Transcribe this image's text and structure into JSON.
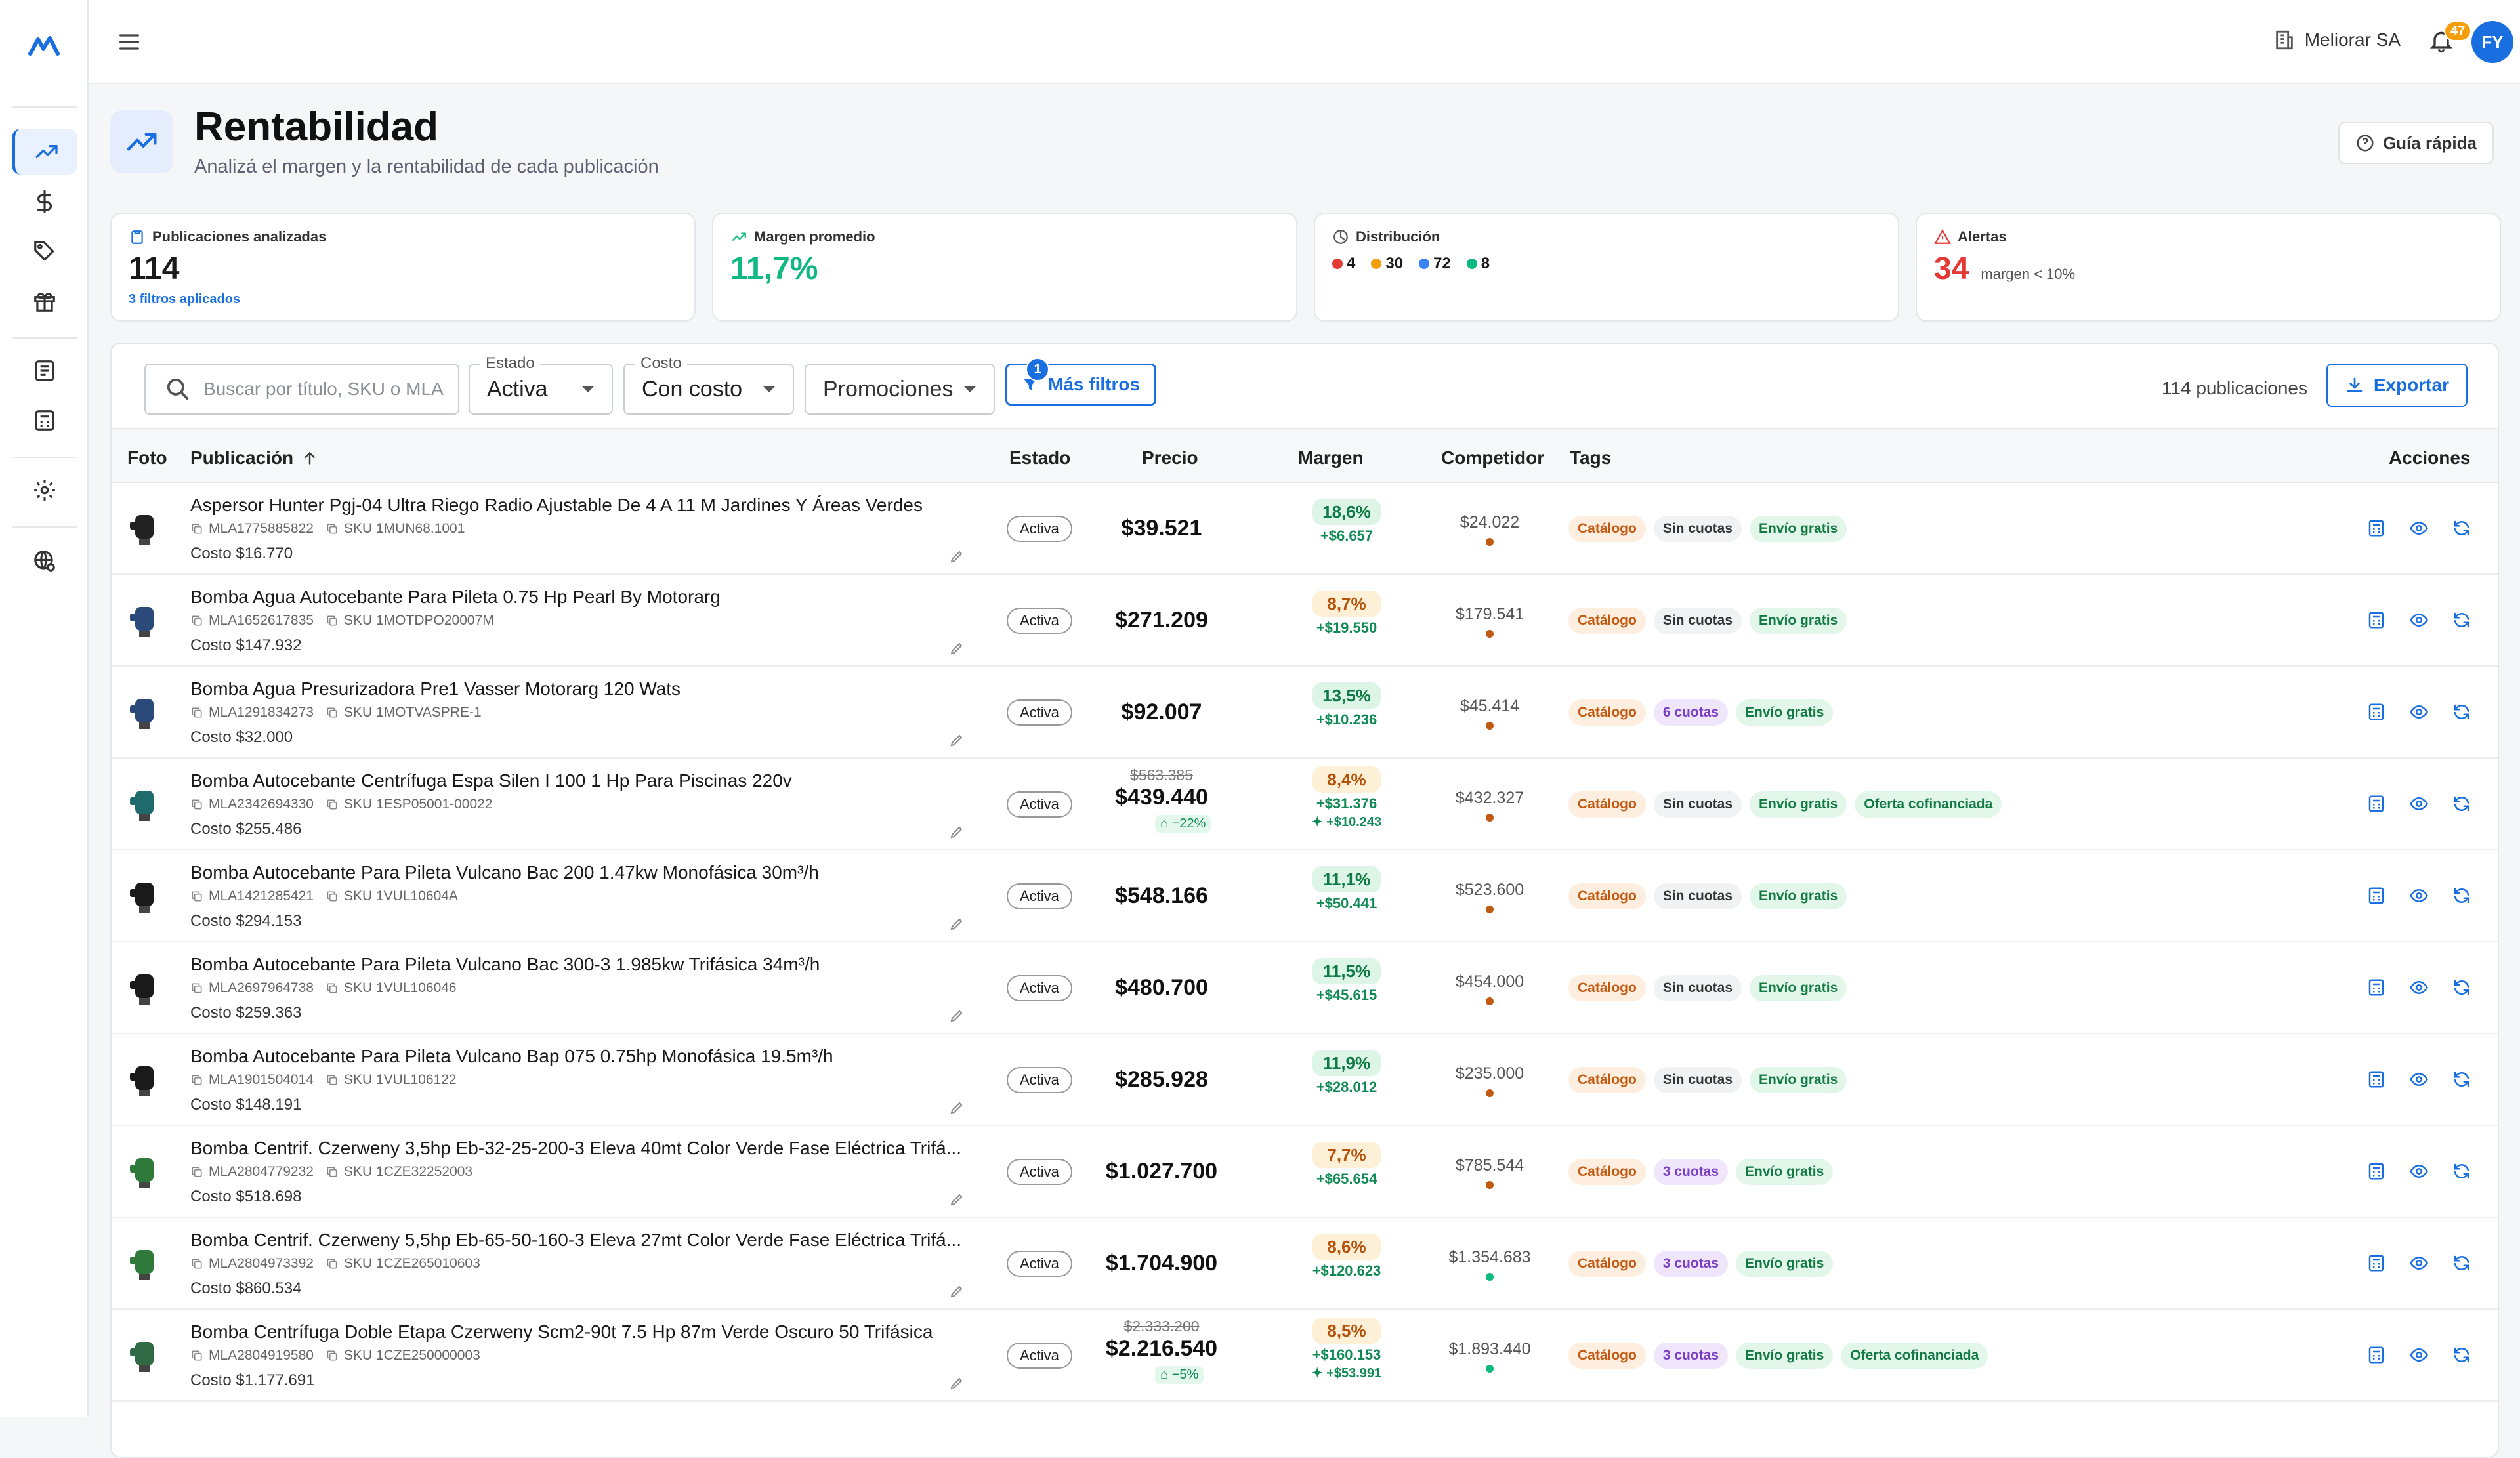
{
  "topbar": {
    "org_name": "Meliorar SA",
    "notifications": "47",
    "avatar_initials": "FY"
  },
  "page": {
    "title": "Rentabilidad",
    "subtitle": "Analizá el margen y la rentabilidad de cada publicación",
    "guide_label": "Guía rápida"
  },
  "cards": {
    "publicaciones": {
      "label": "Publicaciones analizadas",
      "value": "114",
      "sub": "3 filtros aplicados"
    },
    "margen": {
      "label": "Margen promedio",
      "value": "11,7%"
    },
    "distribucion": {
      "label": "Distribución",
      "items": [
        {
          "value": "4",
          "color": "#e53935"
        },
        {
          "value": "30",
          "color": "#f59e0b"
        },
        {
          "value": "72",
          "color": "#3b82f6"
        },
        {
          "value": "8",
          "color": "#10b981"
        }
      ]
    },
    "alertas": {
      "label": "Alertas",
      "value": "34",
      "sub": "margen < 10%"
    }
  },
  "filters": {
    "search_placeholder": "Buscar por título, SKU o MLA",
    "estado": {
      "label": "Estado",
      "value": "Activa"
    },
    "costo": {
      "label": "Costo",
      "value": "Con costo"
    },
    "promociones": {
      "value": "Promociones"
    },
    "more_label": "Más filtros",
    "more_count": "1",
    "count_text": "114 publicaciones",
    "export_label": "Exportar"
  },
  "columns": {
    "foto": "Foto",
    "publicacion": "Publicación",
    "estado": "Estado",
    "precio": "Precio",
    "margen": "Margen",
    "competidor": "Competidor",
    "tags": "Tags",
    "acciones": "Acciones"
  },
  "rows": [
    {
      "title": "Aspersor Hunter Pgj-04 Ultra Riego Radio Ajustable De 4 A 11 M Jardines Y Áreas Verdes",
      "mla": "MLA1775885822",
      "sku": "SKU 1MUN68.1001",
      "cost": "Costo $16.770",
      "status": "Activa",
      "price": "$39.521",
      "old_price": "",
      "discount": "",
      "margin": "18,6%",
      "margin_level": "green",
      "margin_value": "+$6.657",
      "margin_promo": "",
      "competitor": "$24.022",
      "comp_color": "#c05a12",
      "tags": [
        {
          "label": "Catálogo",
          "kind": "cat"
        },
        {
          "label": "Sin cuotas",
          "kind": "sin"
        },
        {
          "label": "Envío gratis",
          "kind": "env"
        }
      ]
    },
    {
      "title": "Bomba Agua Autocebante Para Pileta 0.75 Hp Pearl By Motorarg",
      "mla": "MLA1652617835",
      "sku": "SKU 1MOTDPO20007M",
      "cost": "Costo $147.932",
      "status": "Activa",
      "price": "$271.209",
      "old_price": "",
      "discount": "",
      "margin": "8,7%",
      "margin_level": "orange",
      "margin_value": "+$19.550",
      "margin_promo": "",
      "competitor": "$179.541",
      "comp_color": "#c05a12",
      "tags": [
        {
          "label": "Catálogo",
          "kind": "cat"
        },
        {
          "label": "Sin cuotas",
          "kind": "sin"
        },
        {
          "label": "Envío gratis",
          "kind": "env"
        }
      ]
    },
    {
      "title": "Bomba Agua Presurizadora Pre1 Vasser Motorarg 120 Wats",
      "mla": "MLA1291834273",
      "sku": "SKU 1MOTVASPRE-1",
      "cost": "Costo $32.000",
      "status": "Activa",
      "price": "$92.007",
      "old_price": "",
      "discount": "",
      "margin": "13,5%",
      "margin_level": "green",
      "margin_value": "+$10.236",
      "margin_promo": "",
      "competitor": "$45.414",
      "comp_color": "#c05a12",
      "tags": [
        {
          "label": "Catálogo",
          "kind": "cat"
        },
        {
          "label": "6 cuotas",
          "kind": "cuo"
        },
        {
          "label": "Envío gratis",
          "kind": "env"
        }
      ]
    },
    {
      "title": "Bomba Autocebante Centrífuga Espa Silen I 100 1 Hp Para Piscinas 220v",
      "mla": "MLA2342694330",
      "sku": "SKU 1ESP05001-00022",
      "cost": "Costo $255.486",
      "status": "Activa",
      "price": "$439.440",
      "old_price": "$563.385",
      "discount": "−22%",
      "margin": "8,4%",
      "margin_level": "orange",
      "margin_value": "+$31.376",
      "margin_promo": "+$10.243",
      "competitor": "$432.327",
      "comp_color": "#c05a12",
      "tags": [
        {
          "label": "Catálogo",
          "kind": "cat"
        },
        {
          "label": "Sin cuotas",
          "kind": "sin"
        },
        {
          "label": "Envío gratis",
          "kind": "env"
        },
        {
          "label": "Oferta cofinanciada",
          "kind": "ofe"
        }
      ]
    },
    {
      "title": "Bomba Autocebante Para Pileta Vulcano Bac 200 1.47kw Monofásica 30m³/h",
      "mla": "MLA1421285421",
      "sku": "SKU 1VUL10604A",
      "cost": "Costo $294.153",
      "status": "Activa",
      "price": "$548.166",
      "old_price": "",
      "discount": "",
      "margin": "11,1%",
      "margin_level": "green",
      "margin_value": "+$50.441",
      "margin_promo": "",
      "competitor": "$523.600",
      "comp_color": "#c05a12",
      "tags": [
        {
          "label": "Catálogo",
          "kind": "cat"
        },
        {
          "label": "Sin cuotas",
          "kind": "sin"
        },
        {
          "label": "Envío gratis",
          "kind": "env"
        }
      ]
    },
    {
      "title": "Bomba Autocebante Para Pileta Vulcano Bac 300-3 1.985kw Trifásica 34m³/h",
      "mla": "MLA2697964738",
      "sku": "SKU 1VUL106046",
      "cost": "Costo $259.363",
      "status": "Activa",
      "price": "$480.700",
      "old_price": "",
      "discount": "",
      "margin": "11,5%",
      "margin_level": "green",
      "margin_value": "+$45.615",
      "margin_promo": "",
      "competitor": "$454.000",
      "comp_color": "#c05a12",
      "tags": [
        {
          "label": "Catálogo",
          "kind": "cat"
        },
        {
          "label": "Sin cuotas",
          "kind": "sin"
        },
        {
          "label": "Envío gratis",
          "kind": "env"
        }
      ]
    },
    {
      "title": "Bomba Autocebante Para Pileta Vulcano Bap 075 0.75hp Monofásica 19.5m³/h",
      "mla": "MLA1901504014",
      "sku": "SKU 1VUL106122",
      "cost": "Costo $148.191",
      "status": "Activa",
      "price": "$285.928",
      "old_price": "",
      "discount": "",
      "margin": "11,9%",
      "margin_level": "green",
      "margin_value": "+$28.012",
      "margin_promo": "",
      "competitor": "$235.000",
      "comp_color": "#c05a12",
      "tags": [
        {
          "label": "Catálogo",
          "kind": "cat"
        },
        {
          "label": "Sin cuotas",
          "kind": "sin"
        },
        {
          "label": "Envío gratis",
          "kind": "env"
        }
      ]
    },
    {
      "title": "Bomba Centrif. Czerweny 3,5hp Eb-32-25-200-3 Eleva 40mt Color Verde Fase Eléctrica Trifá...",
      "mla": "MLA2804779232",
      "sku": "SKU 1CZE32252003",
      "cost": "Costo $518.698",
      "status": "Activa",
      "price": "$1.027.700",
      "old_price": "",
      "discount": "",
      "margin": "7,7%",
      "margin_level": "orange",
      "margin_value": "+$65.654",
      "margin_promo": "",
      "competitor": "$785.544",
      "comp_color": "#c05a12",
      "tags": [
        {
          "label": "Catálogo",
          "kind": "cat"
        },
        {
          "label": "3 cuotas",
          "kind": "cuo"
        },
        {
          "label": "Envío gratis",
          "kind": "env"
        }
      ]
    },
    {
      "title": "Bomba Centrif. Czerweny 5,5hp Eb-65-50-160-3 Eleva 27mt Color Verde Fase Eléctrica Trifá...",
      "mla": "MLA2804973392",
      "sku": "SKU 1CZE265010603",
      "cost": "Costo $860.534",
      "status": "Activa",
      "price": "$1.704.900",
      "old_price": "",
      "discount": "",
      "margin": "8,6%",
      "margin_level": "orange",
      "margin_value": "+$120.623",
      "margin_promo": "",
      "competitor": "$1.354.683",
      "comp_color": "#10b981",
      "tags": [
        {
          "label": "Catálogo",
          "kind": "cat"
        },
        {
          "label": "3 cuotas",
          "kind": "cuo"
        },
        {
          "label": "Envío gratis",
          "kind": "env"
        }
      ]
    },
    {
      "title": "Bomba Centrífuga Doble Etapa Czerweny Scm2-90t 7.5 Hp 87m Verde Oscuro 50 Trifásica",
      "mla": "MLA2804919580",
      "sku": "SKU 1CZE250000003",
      "cost": "Costo $1.177.691",
      "status": "Activa",
      "price": "$2.216.540",
      "old_price": "$2.333.200",
      "discount": "−5%",
      "margin": "8,5%",
      "margin_level": "orange",
      "margin_value": "+$160.153",
      "margin_promo": "+$53.991",
      "competitor": "$1.893.440",
      "comp_color": "#10b981",
      "tags": [
        {
          "label": "Catálogo",
          "kind": "cat"
        },
        {
          "label": "3 cuotas",
          "kind": "cuo"
        },
        {
          "label": "Envío gratis",
          "kind": "env"
        },
        {
          "label": "Oferta cofinanciada",
          "kind": "ofe"
        }
      ]
    }
  ]
}
